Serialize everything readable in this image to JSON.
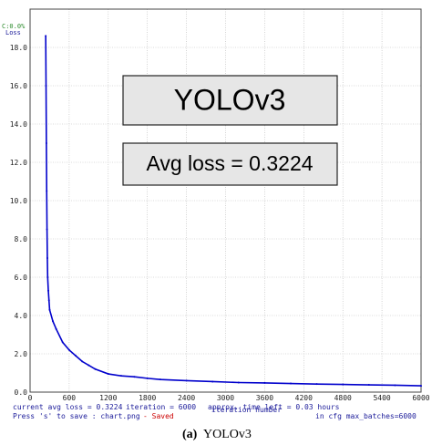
{
  "chart_data": {
    "type": "line",
    "annotations": [
      "YOLOv3",
      "Avg loss = 0.3224"
    ],
    "corner_labels": [
      "C:0.0%",
      "Loss"
    ],
    "x_label": "iteration number",
    "status": {
      "line1": [
        "current avg loss = 0.3224",
        "iteration = 6000",
        "approx. time left = 0.03 hours"
      ],
      "save": "Press 's' to save : chart.png",
      "saved": "- Saved",
      "cfg": "in cfg max_batches=6000"
    },
    "caption": {
      "label": "(a)",
      "text": "YOLOv3"
    },
    "x": [
      240,
      245,
      250,
      255,
      260,
      265,
      270,
      280,
      290,
      300,
      350,
      400,
      500,
      600,
      700,
      800,
      900,
      1000,
      1200,
      1400,
      1600,
      1800,
      2000,
      2400,
      2800,
      3200,
      3600,
      4000,
      4400,
      4800,
      5200,
      5600,
      6000
    ],
    "series": [
      {
        "name": "Loss",
        "color": "#0000cc",
        "values": [
          18.6,
          16.0,
          13.0,
          10.5,
          8.5,
          7.0,
          6.0,
          5.3,
          4.8,
          4.3,
          3.7,
          3.3,
          2.6,
          2.2,
          1.9,
          1.6,
          1.4,
          1.2,
          0.95,
          0.85,
          0.8,
          0.72,
          0.66,
          0.6,
          0.55,
          0.5,
          0.48,
          0.45,
          0.42,
          0.4,
          0.38,
          0.36,
          0.33
        ]
      }
    ],
    "xlim": [
      0,
      6000
    ],
    "xticks": [
      0,
      600,
      1200,
      1800,
      2400,
      3000,
      3600,
      4200,
      4800,
      5400,
      6000
    ],
    "ylim": [
      0,
      20
    ],
    "yticks": [
      {
        "value": 0,
        "label": "0.0"
      },
      {
        "value": 2,
        "label": "2.0"
      },
      {
        "value": 4,
        "label": "4.0"
      },
      {
        "value": 6,
        "label": "6.0"
      },
      {
        "value": 8,
        "label": "8.0"
      },
      {
        "value": 10,
        "label": "10.0"
      },
      {
        "value": 12,
        "label": "12.0"
      },
      {
        "value": 14,
        "label": "14.0"
      },
      {
        "value": 16,
        "label": "16.0"
      },
      {
        "value": 18,
        "label": "18.0"
      }
    ],
    "grid": true
  }
}
